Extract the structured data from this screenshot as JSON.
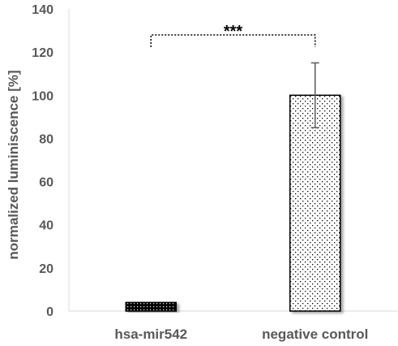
{
  "chart_data": {
    "type": "bar",
    "categories": [
      "hsa-mir542",
      "negative control"
    ],
    "values": [
      4,
      100
    ],
    "errors": [
      0.5,
      15
    ],
    "ylabel": "normalized luminiscence [%]",
    "ylim": [
      0,
      140
    ],
    "yticks": [
      0,
      20,
      40,
      60,
      80,
      100,
      120,
      140
    ],
    "grid": false,
    "legend": "none",
    "significance": {
      "between": [
        "hsa-mir542",
        "negative control"
      ],
      "label": "***"
    },
    "colors": {
      "axis": "#d9d9d9",
      "text": "#595959",
      "bar_edge": "#000000",
      "dense_pattern": "#000000",
      "sparse_pattern_dot": "#000000",
      "bar_fill": "#ffffff"
    }
  }
}
